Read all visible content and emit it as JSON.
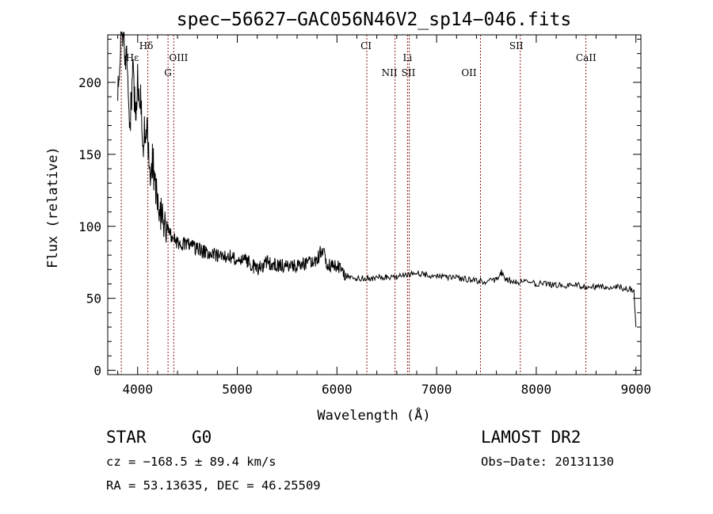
{
  "chart_data": {
    "type": "line",
    "title": "spec−56627−GAC056N46V2_sp14−046.fits",
    "xlabel": "Wavelength (Å)",
    "ylabel": "Flux (relative)",
    "xlim": [
      3700,
      9050
    ],
    "ylim": [
      -3,
      233
    ],
    "x_ticks": [
      4000,
      5000,
      6000,
      7000,
      8000,
      9000
    ],
    "x_tick_labels": [
      "4000",
      "5000",
      "6000",
      "7000",
      "8000",
      "9000"
    ],
    "y_ticks": [
      0,
      50,
      100,
      150,
      200
    ],
    "y_tick_labels": [
      "0",
      "50",
      "100",
      "150",
      "200"
    ],
    "grid": false,
    "series": [
      {
        "x": [
          3800,
          3830,
          3860,
          3890,
          3920,
          3950,
          3980,
          4000,
          4030,
          4060,
          4090,
          4120,
          4150,
          4200,
          4250,
          4300,
          4350,
          4400,
          4500,
          4600,
          4700,
          4800,
          4900,
          5000,
          5100,
          5200,
          5300,
          5400,
          5500,
          5600,
          5700,
          5800,
          5850,
          5900,
          6000,
          6100,
          6200,
          6300,
          6400,
          6500,
          6600,
          6700,
          6800,
          6900,
          7000,
          7100,
          7200,
          7300,
          7400,
          7500,
          7600,
          7650,
          7700,
          7800,
          7900,
          8000,
          8100,
          8200,
          8300,
          8400,
          8500,
          8600,
          8700,
          8800,
          8900,
          8980,
          9000
        ],
        "y": [
          195,
          225,
          232,
          215,
          160,
          210,
          175,
          200,
          185,
          160,
          170,
          135,
          145,
          120,
          105,
          97,
          92,
          88,
          87,
          84,
          82,
          80,
          79,
          78,
          76,
          70,
          75,
          73,
          72,
          72,
          75,
          76,
          85,
          73,
          72,
          66,
          64,
          64,
          64,
          65,
          65,
          66,
          67,
          66,
          66,
          65,
          64,
          63,
          62,
          62,
          63,
          68,
          63,
          61,
          61,
          60,
          60,
          59,
          59,
          59,
          58,
          58,
          58,
          58,
          57,
          56,
          30
        ]
      }
    ],
    "line_labels": [
      {
        "name": "Hε",
        "x": 3970
      },
      {
        "name": "Hδ",
        "x": 4102
      },
      {
        "name": "OIII",
        "x": 4363
      },
      {
        "name": "G",
        "x": 4305
      },
      {
        "name": "CI",
        "x": 6300
      },
      {
        "name": "NII",
        "x": 6583
      },
      {
        "name": "Li",
        "x": 6708
      },
      {
        "name": "SII",
        "x": 6725
      },
      {
        "name": "OII",
        "x": 7325
      },
      {
        "name": "SII",
        "x": 7800
      },
      {
        "name": "CaII",
        "x": 8500
      }
    ],
    "line_marker_x": [
      3836,
      4102,
      4305,
      4363,
      6300,
      6583,
      6708,
      6725,
      7440,
      7840,
      8498
    ]
  },
  "info": {
    "object_type": "STAR",
    "subclass": "G0",
    "survey": "LAMOST DR2",
    "redshift": "cz = −168.5 ± 89.4 km/s",
    "obs_date": "Obs−Date: 20131130",
    "coords": "RA =  53.13635, DEC =  46.25509"
  },
  "colors": {
    "axis": "#000000",
    "spectrum": "#000000",
    "line_marker": "#8b1a1a"
  }
}
